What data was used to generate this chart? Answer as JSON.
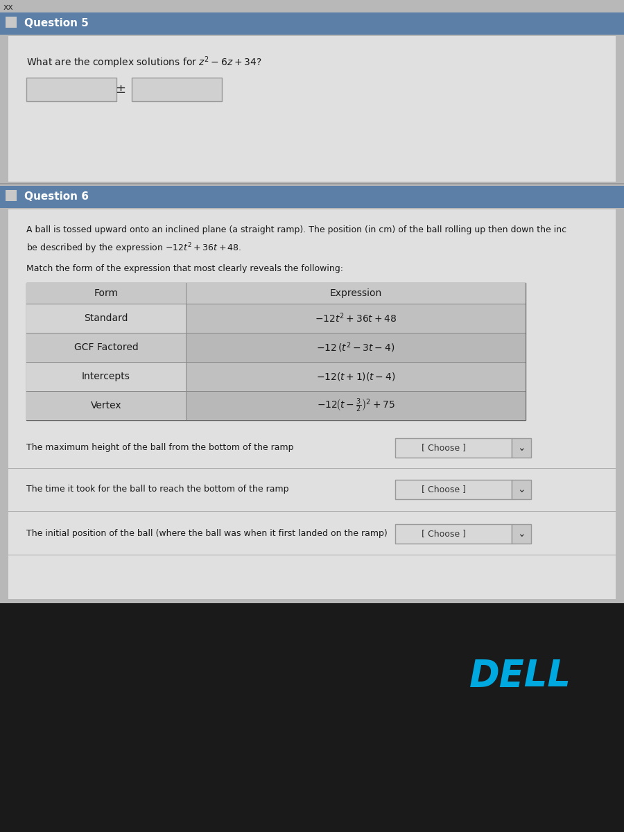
{
  "bg_page": "#b8b8b8",
  "bg_dark_bottom": "#1a1a1a",
  "q5_header": "Question 5",
  "q6_header": "Question 6",
  "q6_text1": "A ball is tossed upward onto an inclined plane (a straight ramp). The position (in cm) of the ball rolling up then down the inc",
  "q6_text2": "be described by the expression – 12t² + 36t + 48.",
  "q6_text3": "Match the form of the expression that most clearly reveals the following:",
  "q1_label": "The maximum height of the ball from the bottom of the ramp",
  "q2_label": "The time it took for the ball to reach the bottom of the ramp",
  "q3_label": "The initial position of the ball (where the ball was when it first landed on the ramp)",
  "choose_text": "[ Choose ]",
  "dell_text": "DELL",
  "dell_color": "#00a8e0",
  "header_bar_color": "#5b7fa6",
  "content_bg": "#e0e0e0",
  "table_header_bg": "#c8c8c8",
  "row_colors_left": [
    "#d4d4d4",
    "#c8c8c8",
    "#d4d4d4",
    "#c8c8c8"
  ],
  "row_colors_right": [
    "#c0c0c0",
    "#b8b8b8",
    "#c0c0c0",
    "#b8b8b8"
  ],
  "row_labels": [
    "Standard",
    "GCF Factored",
    "Intercepts",
    "Vertex"
  ]
}
